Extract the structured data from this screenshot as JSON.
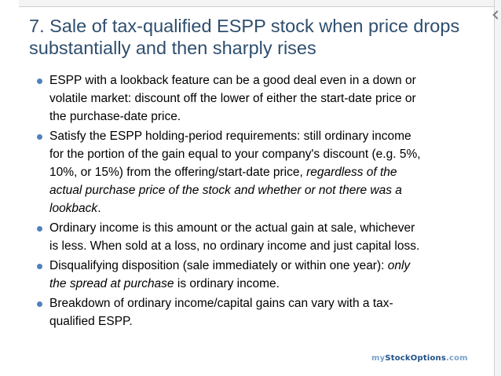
{
  "slide": {
    "title_lines": [
      "7. Sale of tax-qualified ESPP stock when price drops",
      "substantially and then sharply rises"
    ],
    "bullets": [
      [
        [
          "ESPP with a lookback feature can be a good deal even in a down or"
        ],
        [
          "volatile market: discount off the lower of either the start-date price or"
        ],
        [
          "the purchase-date price."
        ]
      ],
      [
        [
          "Satisfy the ESPP holding-period requirements: still ordinary income"
        ],
        [
          "for the portion of the gain equal to your company's discount (e.g. 5%,"
        ],
        [
          "10%, or 15%) from the offering/start-date price, ",
          "regardless of the"
        ],
        [
          "",
          "actual purchase price of the stock and whether or not there was a"
        ],
        [
          "",
          "lookback",
          "."
        ]
      ],
      [
        [
          "Ordinary income is this amount or the actual gain at sale, whichever"
        ],
        [
          "is less. When sold at a loss, no ordinary income and just capital loss."
        ]
      ],
      [
        [
          "Disqualifying disposition (sale immediately or within one year): ",
          "only"
        ],
        [
          "",
          "the spread at purchase",
          " is ordinary income."
        ]
      ],
      [
        [
          "Breakdown of ordinary income/capital gains can vary with a tax-"
        ],
        [
          "qualified ESPP."
        ]
      ]
    ],
    "logo": {
      "part1": "my",
      "part2": "StockOptions",
      "part3": ".com"
    },
    "colors": {
      "title": "#2e4e6e",
      "bullet": "#4f81bd",
      "logo_light": "#7aa1c9",
      "logo_dark": "#1e4f86"
    }
  }
}
